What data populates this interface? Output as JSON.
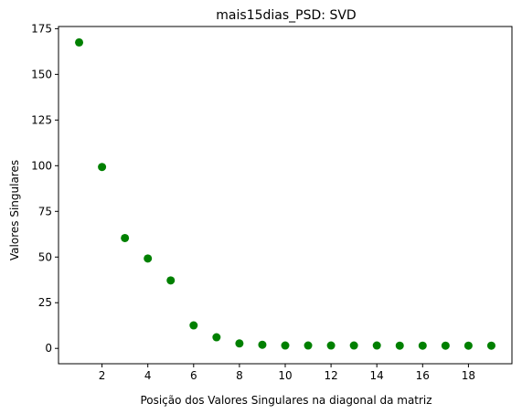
{
  "chart_data": {
    "type": "scatter",
    "title": "mais15dias_PSD: SVD",
    "xlabel": "Posição dos Valores Singulares na diagonal da matriz",
    "ylabel": "Valores Singulares",
    "xlim": [
      0.1,
      19.9
    ],
    "ylim": [
      -8.4,
      176.2
    ],
    "x_ticks": [
      2,
      4,
      6,
      8,
      10,
      12,
      14,
      16,
      18
    ],
    "y_ticks": [
      0,
      25,
      50,
      75,
      100,
      125,
      150,
      175
    ],
    "grid": false,
    "marker_color": "#008000",
    "series": [
      {
        "x": [
          1,
          2,
          3,
          4,
          5,
          6,
          7,
          8,
          9,
          10,
          11,
          12,
          13,
          14,
          15,
          16,
          17,
          18,
          19
        ],
        "y": [
          167.5,
          99.3,
          60.4,
          49.2,
          37.2,
          12.6,
          6.1,
          2.7,
          2.0,
          1.6,
          1.6,
          1.6,
          1.6,
          1.6,
          1.5,
          1.5,
          1.5,
          1.5,
          1.5
        ]
      }
    ]
  }
}
